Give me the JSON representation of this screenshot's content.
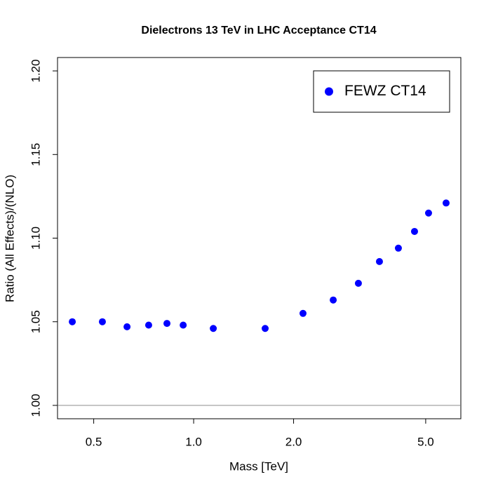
{
  "chart_data": {
    "type": "scatter",
    "title": "Dielectrons 13 TeV in LHC Acceptance CT14",
    "x_label": "Mass [TeV]",
    "y_label": "Ratio (All Effects)/(NLO)",
    "x_log": true,
    "xlim": [
      0.389,
      6.38
    ],
    "ylim": [
      0.992,
      1.208
    ],
    "xticks": [
      0.5,
      {
        "value": 1.0,
        "label": "1.0"
      },
      {
        "value": 2.0,
        "label": "2.0"
      },
      {
        "value": 5.0,
        "label": "5.0"
      }
    ],
    "yticks": [
      {
        "value": 1.0,
        "label": "1.00"
      },
      1.05,
      {
        "value": 1.1,
        "label": "1.10"
      },
      1.15,
      {
        "value": 1.2,
        "label": "1.20"
      }
    ],
    "reference_line": {
      "value": 1.0,
      "color": "#999999"
    },
    "legend_position": "top-right",
    "series": [
      {
        "name": "FEWZ CT14",
        "color": "#0000ff",
        "x": [
          0.431,
          0.531,
          0.63,
          0.732,
          0.831,
          0.93,
          1.146,
          1.642,
          2.135,
          2.633,
          3.135,
          3.628,
          4.137,
          4.627,
          5.1,
          5.76
        ],
        "values": [
          1.05,
          1.05,
          1.047,
          1.048,
          1.049,
          1.048,
          1.046,
          1.046,
          1.055,
          1.063,
          1.073,
          1.086,
          1.094,
          1.104,
          1.115,
          1.121
        ]
      }
    ]
  }
}
